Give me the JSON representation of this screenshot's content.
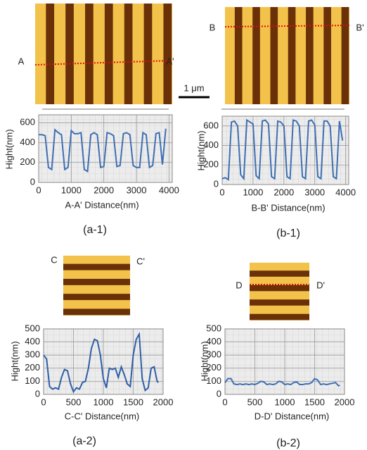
{
  "scale_bar_label": "1 μm",
  "chart_data": [
    {
      "type": "line",
      "caption": "(a-1)",
      "markers": [
        "A",
        "A'"
      ],
      "xlabel": "A-A' Distance(nm)",
      "ylabel": "Hight(nm)",
      "x": [
        0,
        100,
        200,
        300,
        400,
        500,
        600,
        700,
        800,
        900,
        1000,
        1100,
        1200,
        1300,
        1400,
        1500,
        1600,
        1700,
        1800,
        1900,
        2000,
        2100,
        2200,
        2300,
        2400,
        2500,
        2600,
        2700,
        2800,
        2900,
        3000,
        3100,
        3200,
        3300,
        3400,
        3500,
        3600,
        3700,
        3800,
        3900
      ],
      "values": [
        480,
        480,
        470,
        150,
        130,
        530,
        500,
        480,
        130,
        150,
        520,
        490,
        490,
        500,
        130,
        110,
        480,
        500,
        480,
        150,
        160,
        500,
        490,
        470,
        160,
        170,
        490,
        500,
        480,
        170,
        150,
        150,
        500,
        480,
        150,
        170,
        490,
        500,
        180,
        540
      ],
      "color": "#3e6fb3",
      "xlim": [
        0,
        4100
      ],
      "ylim": [
        0,
        680
      ],
      "xticks": [
        0,
        1000,
        2000,
        3000,
        4000
      ],
      "yticks": [
        0,
        200,
        400,
        600
      ],
      "grid": true
    },
    {
      "type": "line",
      "caption": "(b-1)",
      "markers": [
        "B",
        "B'"
      ],
      "xlabel": "B-B' Distance(nm)",
      "ylabel": "Hight(nm)",
      "x": [
        0,
        100,
        200,
        300,
        400,
        500,
        600,
        700,
        800,
        900,
        1000,
        1100,
        1200,
        1300,
        1400,
        1500,
        1600,
        1700,
        1800,
        1900,
        2000,
        2100,
        2200,
        2300,
        2400,
        2500,
        2600,
        2700,
        2800,
        2900,
        3000,
        3100,
        3200,
        3300,
        3400,
        3500,
        3600,
        3700,
        3800,
        3900
      ],
      "values": [
        60,
        70,
        50,
        640,
        650,
        600,
        100,
        60,
        660,
        640,
        620,
        90,
        60,
        650,
        660,
        620,
        80,
        60,
        650,
        640,
        600,
        80,
        60,
        660,
        650,
        600,
        80,
        60,
        650,
        660,
        610,
        80,
        60,
        650,
        650,
        600,
        80,
        60,
        650,
        450
      ],
      "color": "#3e6fb3",
      "xlim": [
        0,
        4100
      ],
      "ylim": [
        0,
        700
      ],
      "xticks": [
        0,
        1000,
        2000,
        3000,
        4000
      ],
      "yticks": [
        0,
        200,
        400,
        600
      ],
      "grid": true
    },
    {
      "type": "line",
      "caption": "(a-2)",
      "markers": [
        "C",
        "C'"
      ],
      "xlabel": "C-C' Distance(nm)",
      "ylabel": "Hight(nm)",
      "x": [
        0,
        50,
        100,
        150,
        200,
        250,
        300,
        350,
        400,
        450,
        500,
        550,
        600,
        650,
        700,
        750,
        800,
        850,
        900,
        950,
        1000,
        1050,
        1100,
        1150,
        1200,
        1250,
        1300,
        1350,
        1400,
        1450,
        1500,
        1550,
        1600,
        1650,
        1700,
        1750,
        1800,
        1850,
        1900,
        1920
      ],
      "values": [
        300,
        270,
        60,
        40,
        50,
        40,
        130,
        190,
        180,
        80,
        20,
        50,
        40,
        90,
        100,
        200,
        350,
        420,
        410,
        300,
        120,
        50,
        200,
        190,
        200,
        130,
        210,
        150,
        80,
        60,
        300,
        420,
        460,
        120,
        30,
        50,
        200,
        210,
        100,
        90
      ],
      "color": "#2e5fa8",
      "xlim": [
        0,
        2000
      ],
      "ylim": [
        0,
        500
      ],
      "xticks": [
        0,
        500,
        1000,
        1500,
        2000
      ],
      "yticks": [
        0,
        100,
        200,
        300,
        400,
        500
      ],
      "grid": true
    },
    {
      "type": "line",
      "caption": "(b-2)",
      "markers": [
        "D",
        "D'"
      ],
      "xlabel": "D-D' Distance(nm)",
      "ylabel": "Hight(nm)",
      "x": [
        0,
        50,
        100,
        150,
        200,
        250,
        300,
        350,
        400,
        450,
        500,
        550,
        600,
        650,
        700,
        750,
        800,
        850,
        900,
        950,
        1000,
        1050,
        1100,
        1150,
        1200,
        1250,
        1300,
        1350,
        1400,
        1450,
        1500,
        1550,
        1600,
        1650,
        1700,
        1750,
        1800,
        1850,
        1900,
        1920
      ],
      "values": [
        90,
        120,
        120,
        80,
        75,
        80,
        75,
        80,
        75,
        80,
        75,
        85,
        100,
        95,
        75,
        80,
        75,
        80,
        100,
        95,
        75,
        80,
        75,
        90,
        95,
        75,
        75,
        80,
        80,
        90,
        120,
        110,
        75,
        80,
        75,
        80,
        85,
        90,
        65,
        70
      ],
      "color": "#3e6fb3",
      "xlim": [
        0,
        2000
      ],
      "ylim": [
        0,
        500
      ],
      "xticks": [
        0,
        500,
        1000,
        1500,
        2000
      ],
      "yticks": [
        0,
        100,
        200,
        300,
        400,
        500
      ],
      "grid": true
    }
  ]
}
